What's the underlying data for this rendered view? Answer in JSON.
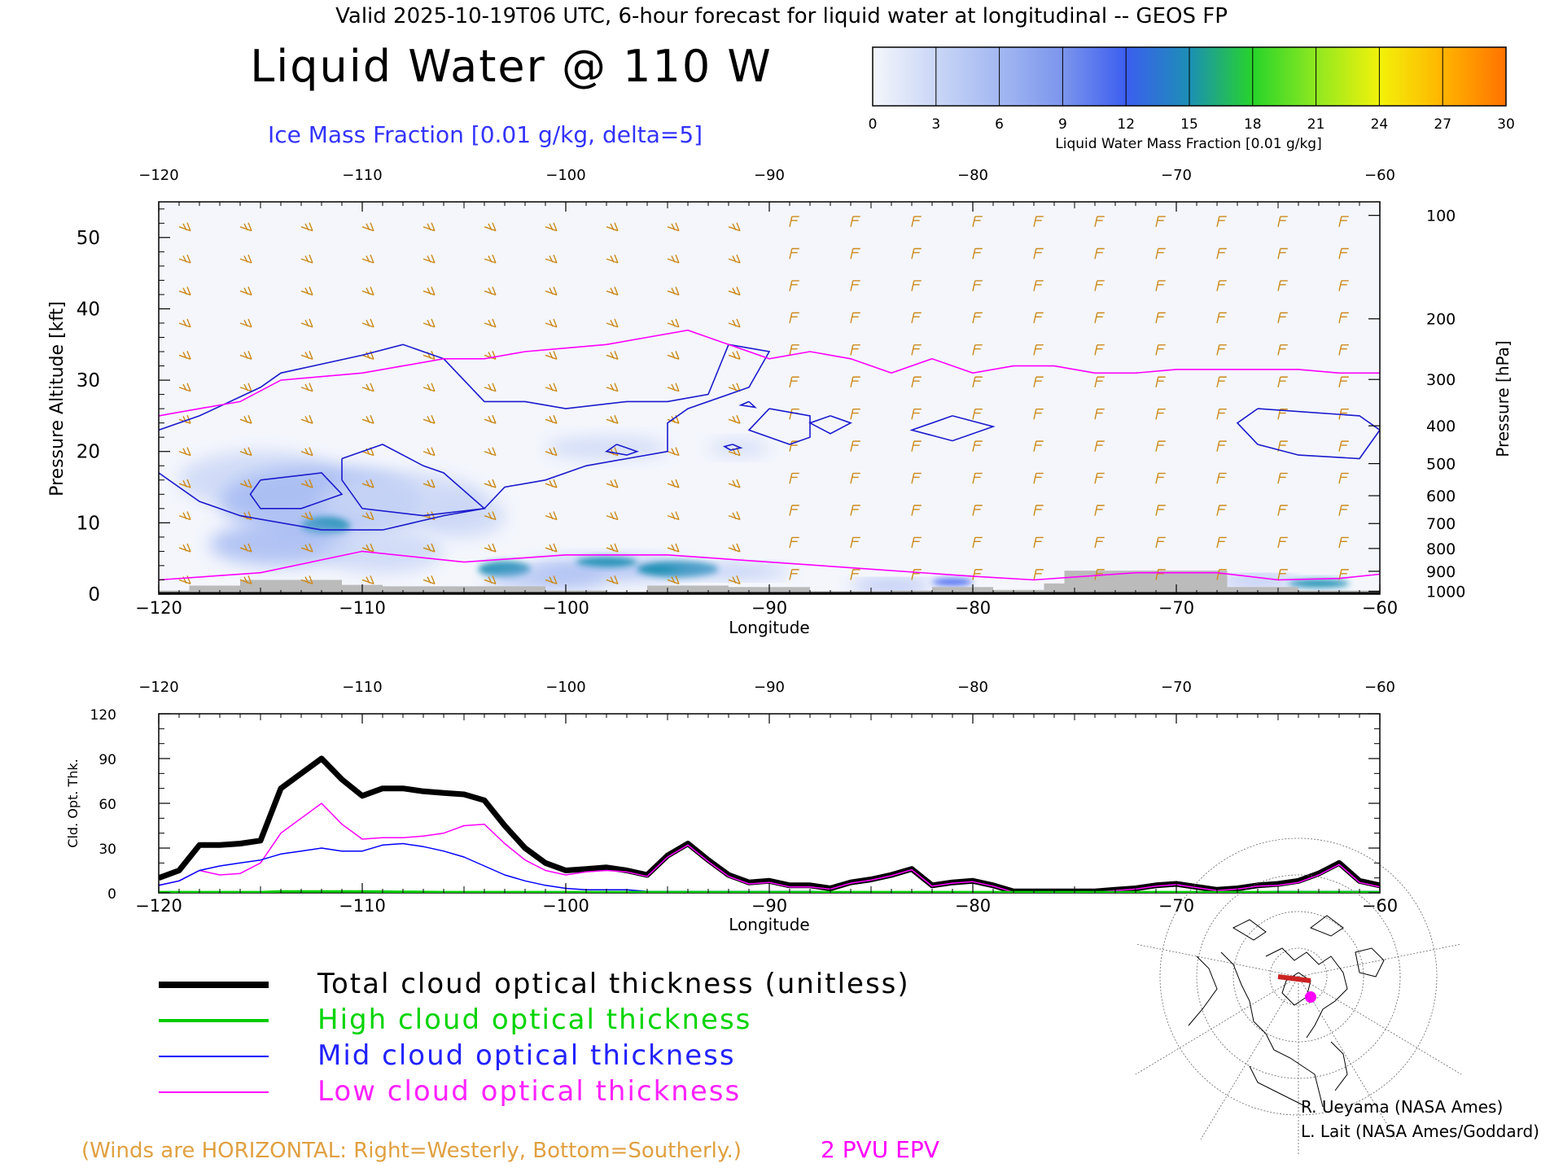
{
  "header": {
    "valid_line": "Valid 2025-10-19T06 UTC, 6-hour forecast for liquid water at longitudinal -- GEOS FP",
    "title": "Liquid Water @ 110 W",
    "ice_label": "Ice Mass Fraction [0.01 g/kg, delta=5]"
  },
  "colorbar": {
    "label": "Liquid Water Mass Fraction [0.01 g/kg]",
    "ticks": [
      "0",
      "3",
      "6",
      "9",
      "12",
      "15",
      "18",
      "21",
      "24",
      "27",
      "30"
    ],
    "colors": [
      "#f4f6fc",
      "#c9d6f6",
      "#a3b8f2",
      "#7b95ec",
      "#3c5ef0",
      "#1c8fb4",
      "#27d42a",
      "#8fe820",
      "#f2f20a",
      "#ffb400",
      "#ff7200"
    ],
    "end_color": "#ff2200"
  },
  "chart_data": [
    {
      "type": "heatmap",
      "xlabel": "Longitude",
      "ylabel_left": "Pressure Altitude [kft]",
      "ylabel_right": "Pressure [hPa]",
      "xlim": [
        -120,
        -60
      ],
      "ylim": [
        0,
        55
      ],
      "x_ticks": [
        "−120",
        "−110",
        "−100",
        "−90",
        "−80",
        "−70",
        "−60"
      ],
      "x_tick_values": [
        -120,
        -110,
        -100,
        -90,
        -80,
        -70,
        -60
      ],
      "y_ticks": [
        "0",
        "10",
        "20",
        "30",
        "40",
        "50"
      ],
      "y_tick_values": [
        0,
        10,
        20,
        30,
        40,
        50
      ],
      "pressure_ticks": [
        "100",
        "200",
        "300",
        "400",
        "500",
        "600",
        "700",
        "800",
        "900",
        "1000"
      ],
      "pressure_tick_kft": [
        53.1,
        38.6,
        30.1,
        23.6,
        18.3,
        13.8,
        9.9,
        6.4,
        3.2,
        0.4
      ],
      "ice_contours": [
        [
          [
            -120,
            23
          ],
          [
            -118,
            25
          ],
          [
            -115,
            29
          ],
          [
            -114,
            31
          ],
          [
            -110,
            33.5
          ],
          [
            -108,
            35
          ],
          [
            -106,
            33
          ],
          [
            -104,
            27
          ],
          [
            -102,
            27
          ],
          [
            -100,
            26
          ],
          [
            -97,
            27
          ],
          [
            -95,
            27
          ],
          [
            -93,
            28
          ],
          [
            -92,
            35
          ],
          [
            -90,
            34
          ],
          [
            -91,
            29
          ],
          [
            -94,
            26
          ],
          [
            -95,
            24
          ],
          [
            -95,
            20
          ],
          [
            -97,
            19
          ],
          [
            -99,
            18
          ],
          [
            -101,
            16
          ],
          [
            -103,
            15
          ],
          [
            -104,
            12
          ],
          [
            -106,
            11
          ],
          [
            -109,
            9
          ],
          [
            -112,
            9
          ],
          [
            -116,
            11
          ],
          [
            -118,
            13
          ],
          [
            -120,
            17
          ]
        ],
        [
          [
            -115,
            16
          ],
          [
            -112,
            17
          ],
          [
            -111,
            14
          ],
          [
            -113,
            12
          ],
          [
            -115,
            12
          ],
          [
            -115.5,
            14
          ],
          [
            -115,
            16
          ]
        ],
        [
          [
            -111,
            19
          ],
          [
            -109,
            21
          ],
          [
            -107,
            18
          ],
          [
            -106,
            17
          ],
          [
            -104,
            12
          ],
          [
            -107,
            11
          ],
          [
            -110,
            12
          ],
          [
            -111,
            16
          ],
          [
            -111,
            19
          ]
        ],
        [
          [
            -97.5,
            21
          ],
          [
            -96.5,
            20
          ],
          [
            -97,
            19.5
          ],
          [
            -98,
            20
          ],
          [
            -97.5,
            21
          ]
        ],
        [
          [
            -90,
            26
          ],
          [
            -88,
            25
          ],
          [
            -88,
            22
          ],
          [
            -89,
            21
          ],
          [
            -91,
            23
          ],
          [
            -90,
            26
          ]
        ],
        [
          [
            -87,
            25
          ],
          [
            -86,
            24
          ],
          [
            -87,
            22.5
          ],
          [
            -88,
            24
          ],
          [
            -87,
            25
          ]
        ],
        [
          [
            -81,
            25
          ],
          [
            -79,
            23.5
          ],
          [
            -81,
            21.5
          ],
          [
            -83,
            23
          ],
          [
            -81,
            25
          ]
        ],
        [
          [
            -66,
            26
          ],
          [
            -61,
            25
          ],
          [
            -60,
            23
          ],
          [
            -61,
            19
          ],
          [
            -64,
            19.5
          ],
          [
            -66,
            21
          ],
          [
            -67,
            24
          ],
          [
            -66,
            26
          ]
        ],
        [
          [
            -91,
            27
          ],
          [
            -90.7,
            26.2
          ],
          [
            -91.4,
            26.5
          ],
          [
            -91,
            27
          ]
        ],
        [
          [
            -91.8,
            21
          ],
          [
            -91.4,
            20.5
          ],
          [
            -91.9,
            20.2
          ],
          [
            -92.2,
            20.7
          ],
          [
            -91.8,
            21
          ]
        ]
      ],
      "epv_line": [
        [
          -120,
          25
        ],
        [
          -118,
          26
        ],
        [
          -116,
          27
        ],
        [
          -114,
          30
        ],
        [
          -112,
          30.5
        ],
        [
          -110,
          31
        ],
        [
          -108,
          32
        ],
        [
          -106,
          33
        ],
        [
          -104,
          33
        ],
        [
          -102,
          34
        ],
        [
          -100,
          34.5
        ],
        [
          -98,
          35
        ],
        [
          -96,
          36
        ],
        [
          -94,
          37
        ],
        [
          -92,
          35
        ],
        [
          -90,
          33
        ],
        [
          -88,
          34
        ],
        [
          -86,
          33
        ],
        [
          -84,
          31
        ],
        [
          -82,
          33
        ],
        [
          -80,
          31
        ],
        [
          -78,
          32
        ],
        [
          -76,
          32
        ],
        [
          -74,
          31
        ],
        [
          -72,
          31
        ],
        [
          -70,
          31.5
        ],
        [
          -68,
          31.5
        ],
        [
          -66,
          31.5
        ],
        [
          -64,
          31.5
        ],
        [
          -62,
          31
        ],
        [
          -60,
          31
        ]
      ],
      "epv_low_line": [
        [
          -120,
          2
        ],
        [
          -115,
          3
        ],
        [
          -110,
          6
        ],
        [
          -105,
          4.5
        ],
        [
          -100,
          5.5
        ],
        [
          -95,
          5.5
        ],
        [
          -90,
          4.5
        ],
        [
          -85,
          3.5
        ],
        [
          -80,
          2.5
        ],
        [
          -77,
          2
        ],
        [
          -72,
          3
        ],
        [
          -68,
          3
        ],
        [
          -65,
          2
        ],
        [
          -62,
          2.2
        ],
        [
          -60,
          2.8
        ]
      ],
      "liquid_blobs": [
        {
          "x": -115,
          "y": 16,
          "rx": 4,
          "ry": 4,
          "v": 5
        },
        {
          "x": -112,
          "y": 13,
          "rx": 5,
          "ry": 5,
          "v": 6
        },
        {
          "x": -108,
          "y": 13,
          "rx": 4,
          "ry": 4,
          "v": 5
        },
        {
          "x": -105,
          "y": 11,
          "rx": 2,
          "ry": 3,
          "v": 5
        },
        {
          "x": -111.8,
          "y": 9.5,
          "rx": 1.2,
          "ry": 1.3,
          "v": 15
        },
        {
          "x": -114,
          "y": 7,
          "rx": 3.5,
          "ry": 3,
          "v": 6
        },
        {
          "x": -109,
          "y": 6,
          "rx": 3,
          "ry": 3,
          "v": 5
        },
        {
          "x": -103,
          "y": 3.5,
          "rx": 1.3,
          "ry": 1.1,
          "v": 15
        },
        {
          "x": -98,
          "y": 3.5,
          "rx": 4,
          "ry": 1.5,
          "v": 7
        },
        {
          "x": -94.5,
          "y": 3.5,
          "rx": 2,
          "ry": 1.1,
          "v": 17
        },
        {
          "x": -98,
          "y": 4.5,
          "rx": 1.5,
          "ry": 0.7,
          "v": 15
        },
        {
          "x": -101,
          "y": 2,
          "rx": 3,
          "ry": 1.2,
          "v": 8
        },
        {
          "x": -92,
          "y": 3.2,
          "rx": 3,
          "ry": 0.8,
          "v": 8
        },
        {
          "x": -98,
          "y": 20.5,
          "rx": 3,
          "ry": 1.5,
          "v": 3
        },
        {
          "x": -91.5,
          "y": 20.5,
          "rx": 1.5,
          "ry": 1,
          "v": 3
        },
        {
          "x": -84,
          "y": 1.2,
          "rx": 2,
          "ry": 0.6,
          "v": 10
        },
        {
          "x": -81,
          "y": 1.7,
          "rx": 1,
          "ry": 0.5,
          "v": 13
        },
        {
          "x": -63,
          "y": 1.5,
          "rx": 1.5,
          "ry": 0.6,
          "v": 16
        },
        {
          "x": -66,
          "y": 1.8,
          "rx": 2,
          "ry": 0.6,
          "v": 9
        },
        {
          "x": -64,
          "y": 23.5,
          "rx": 3,
          "ry": 1.2,
          "v": 2
        }
      ],
      "terrain": [
        [
          -120,
          0.5
        ],
        [
          -118.5,
          1.2
        ],
        [
          -116,
          2
        ],
        [
          -113,
          2
        ],
        [
          -111,
          1.3
        ],
        [
          -109,
          1.1
        ],
        [
          -104,
          1.1
        ],
        [
          -101,
          0.5
        ],
        [
          -98,
          0.3
        ],
        [
          -96,
          1.2
        ],
        [
          -92,
          1
        ],
        [
          -88,
          0.4
        ],
        [
          -84,
          0.5
        ],
        [
          -82,
          1
        ],
        [
          -79,
          0.6
        ],
        [
          -76.5,
          1.5
        ],
        [
          -75.5,
          3.3
        ],
        [
          -73,
          3.3
        ],
        [
          -68,
          3.3
        ],
        [
          -67.5,
          1
        ],
        [
          -64,
          0.5
        ],
        [
          -60,
          0.5
        ]
      ]
    },
    {
      "type": "line",
      "xlabel": "Longitude",
      "ylabel": "Cld. Opt. Thk.",
      "xlim": [
        -120,
        -60
      ],
      "ylim": [
        0,
        120
      ],
      "y_ticks": [
        "0",
        "30",
        "60",
        "90",
        "120"
      ],
      "y_tick_values": [
        0,
        30,
        60,
        90,
        120
      ],
      "x": [
        -120,
        -119,
        -118,
        -117,
        -116,
        -115,
        -114,
        -113,
        -112,
        -111,
        -110,
        -109,
        -108,
        -107,
        -106,
        -105,
        -104,
        -103,
        -102,
        -101,
        -100,
        -99,
        -98,
        -97,
        -96,
        -95,
        -94,
        -93,
        -92,
        -91,
        -90,
        -89,
        -88,
        -87,
        -86,
        -85,
        -84,
        -83,
        -82,
        -81,
        -80,
        -79,
        -78,
        -77,
        -76,
        -75,
        -74,
        -73,
        -72,
        -71,
        -70,
        -69,
        -68,
        -67,
        -66,
        -65,
        -64,
        -63,
        -62,
        -61,
        -60
      ],
      "series": [
        {
          "name": "Total cloud optical thickness (unitless)",
          "color": "#000000",
          "values": [
            10,
            15,
            32,
            32,
            33,
            35,
            70,
            80,
            90,
            76,
            65,
            70,
            70,
            68,
            67,
            66,
            62,
            45,
            30,
            20,
            15,
            16,
            17,
            15,
            12,
            25,
            33,
            22,
            12,
            7,
            8,
            5,
            5,
            3,
            7,
            9,
            12,
            16,
            5,
            7,
            8,
            5,
            1,
            1,
            1,
            1,
            1,
            2,
            3,
            5,
            6,
            4,
            2,
            3,
            5,
            6,
            8,
            13,
            20,
            8,
            5
          ]
        },
        {
          "name": "High cloud optical thickness",
          "color": "#00cc00",
          "values": [
            0.5,
            0.5,
            0.5,
            0.5,
            0.5,
            0.5,
            1,
            1,
            1,
            1,
            1,
            0.8,
            0.7,
            0.6,
            0.5,
            0.5,
            0.5,
            0.5,
            0.5,
            0.5,
            0.5,
            0.5,
            0.5,
            0.5,
            0.5,
            0.5,
            0.5,
            0.5,
            0.5,
            0.5,
            0.5,
            0.5,
            0.5,
            0.5,
            0.5,
            0.5,
            0.5,
            0.5,
            0.5,
            0.5,
            0.5,
            0.5,
            0.5,
            0.5,
            0.5,
            0.5,
            0.5,
            0.5,
            0.5,
            0.5,
            0.5,
            0.5,
            0.5,
            0.5,
            0.5,
            0.5,
            0.5,
            0.5,
            0.5,
            0.5,
            0.5
          ]
        },
        {
          "name": "Mid cloud optical thickness",
          "color": "#0000ff",
          "values": [
            5,
            8,
            15,
            18,
            20,
            22,
            26,
            28,
            30,
            28,
            28,
            32,
            33,
            31,
            28,
            24,
            18,
            12,
            8,
            5,
            3,
            2,
            2,
            2,
            1,
            1,
            1,
            1,
            1,
            1,
            1,
            1,
            1,
            0.5,
            0.5,
            0.5,
            0.5,
            0.5,
            0.5,
            0.5,
            0.5,
            0.5,
            0.5,
            0.5,
            0.5,
            0.5,
            0.5,
            0.5,
            0.5,
            0.5,
            0.5,
            0.5,
            0.5,
            0.5,
            0.5,
            1,
            1,
            1,
            1,
            1,
            1
          ]
        },
        {
          "name": "Low cloud optical thickness",
          "color": "#ff00ff",
          "values": [
            5,
            8,
            15,
            12,
            13,
            20,
            40,
            50,
            60,
            46,
            36,
            37,
            37,
            38,
            40,
            45,
            46,
            33,
            22,
            15,
            12,
            14,
            15,
            14,
            11,
            24,
            32,
            21,
            11,
            6,
            7,
            4,
            4,
            2.5,
            6.5,
            8.5,
            11.5,
            15.5,
            4.5,
            6.5,
            7.5,
            4.5,
            0.5,
            0.5,
            0.5,
            0.5,
            0.5,
            1.5,
            2.5,
            4.5,
            5.5,
            3.5,
            1.5,
            2.5,
            4.5,
            5,
            7,
            12,
            19,
            7,
            4
          ]
        }
      ]
    }
  ],
  "legend": [
    {
      "label": "Total cloud optical thickness (unitless)",
      "color": "#000000",
      "text_color": "#000000"
    },
    {
      "label": "High cloud optical thickness",
      "color": "#00cc00",
      "text_color": "#00d400"
    },
    {
      "label": "Mid cloud optical thickness",
      "color": "#0000ff",
      "text_color": "#2222ff"
    },
    {
      "label": "Low cloud optical thickness",
      "color": "#ff00ff",
      "text_color": "#ff22ff"
    }
  ],
  "footer": {
    "winds_note": "(Winds are HORIZONTAL: Right=Westerly, Bottom=Southerly.)",
    "epv_label": "2 PVU EPV",
    "credit_1": "R. Ueyama (NASA Ames)",
    "credit_2": "L. Lait (NASA Ames/Goddard)"
  },
  "colors": {
    "ice_contour": "#1a1acc",
    "epv": "#ff00ff",
    "wind_barb": "#cc8a1a",
    "terrain": "#bbbbbb",
    "title_ice": "#3333ff",
    "winds_note": "#e0a040",
    "epv_label": "#ff00ff"
  }
}
